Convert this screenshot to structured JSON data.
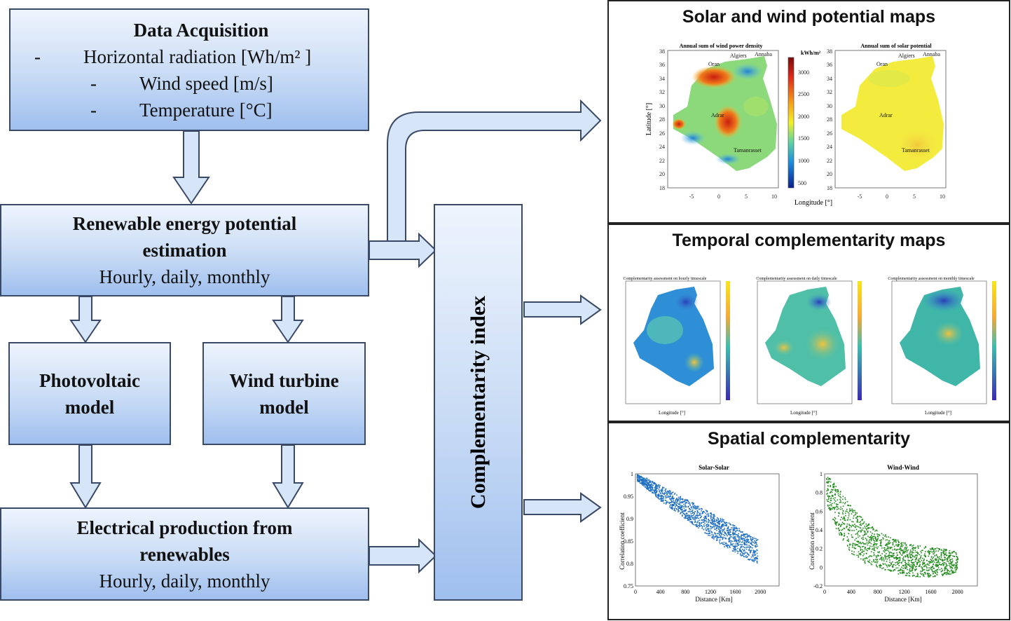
{
  "colors": {
    "box_top": "#eef4fd",
    "box_bottom": "#9fbfee",
    "arrow_fill": "#d6e5f8",
    "stroke": "#3a4a66"
  },
  "data_acquisition": {
    "title": "Data Acquisition",
    "items": [
      "Horizontal radiation [Wh/m² ]",
      "Wind speed [m/s]",
      "Temperature [°C]"
    ]
  },
  "potential": {
    "title1": "Renewable energy potential",
    "title2": "estimation",
    "sub": "Hourly, daily, monthly"
  },
  "pv": {
    "line1": "Photovoltaic",
    "line2": "model"
  },
  "wt": {
    "line1": "Wind turbine",
    "line2": "model"
  },
  "production": {
    "title1": "Electrical production from",
    "title2": "renewables",
    "sub": "Hourly, daily, monthly"
  },
  "complementarity": {
    "label": "Complementarity index"
  },
  "panels": {
    "maps": {
      "title": "Solar and wind potential maps",
      "wind_title": "Annual sum of wind power density",
      "solar_title": "Annual sum of solar potential",
      "unit": "kWh/m²",
      "colorbar_ticks": [
        "3000",
        "2500",
        "2000",
        "1500",
        "1000",
        "500"
      ],
      "y_ticks": [
        "38",
        "36",
        "34",
        "32",
        "30",
        "28",
        "26",
        "24",
        "22",
        "20",
        "18"
      ],
      "x_ticks": [
        "-5",
        "0",
        "5",
        "10"
      ],
      "ylabel": "Latitude [°]",
      "xlabel": "Longitude [°]",
      "cities": [
        "Oran",
        "Algiers",
        "Annaba",
        "Adrar",
        "Tamanrasset"
      ]
    },
    "temporal": {
      "title": "Temporal complementarity maps",
      "sub_titles": [
        "Complementarity assessment on hourly timescale",
        "Complementarity assessment on daily timescale",
        "Complementarity assessment on monthly timescale"
      ],
      "xlabel": "Longitude [°]"
    },
    "spatial": {
      "title": "Spatial complementarity",
      "ylabel": "Correlation coefficient",
      "xlabel": "Distance [Km]"
    }
  },
  "chart_data": [
    {
      "type": "scatter",
      "title": "Solar-Solar",
      "xlabel": "Distance [Km]",
      "ylabel": "Correlation coefficient",
      "xlim": [
        0,
        2300
      ],
      "ylim": [
        0.75,
        1.0
      ],
      "x_ticks": [
        0,
        400,
        800,
        1200,
        1600,
        2000
      ],
      "y_ticks": [
        0.75,
        0.8,
        0.85,
        0.9,
        0.95,
        1
      ],
      "color": "#1f6fc2",
      "series": [
        {
          "x": [
            20,
            200,
            400,
            600,
            800,
            1000,
            1200,
            1400,
            1600,
            1800,
            1950
          ],
          "y_high": [
            1.0,
            0.99,
            0.975,
            0.96,
            0.945,
            0.93,
            0.915,
            0.9,
            0.885,
            0.865,
            0.855
          ],
          "y_low": [
            0.985,
            0.965,
            0.94,
            0.92,
            0.9,
            0.88,
            0.86,
            0.84,
            0.825,
            0.81,
            0.8
          ]
        }
      ]
    },
    {
      "type": "scatter",
      "title": "Wind-Wind",
      "xlabel": "Distance [Km]",
      "ylabel": "Correlation coefficient",
      "xlim": [
        0,
        2300
      ],
      "ylim": [
        -0.2,
        1.0
      ],
      "x_ticks": [
        0,
        400,
        800,
        1200,
        1600,
        2000
      ],
      "y_ticks": [
        -0.2,
        0,
        0.2,
        0.4,
        0.6,
        0.8,
        1
      ],
      "color": "#1f8a1a",
      "series": [
        {
          "x": [
            20,
            200,
            400,
            600,
            800,
            1000,
            1200,
            1400,
            1600,
            1800,
            2000
          ],
          "y_high": [
            1.0,
            0.85,
            0.65,
            0.5,
            0.4,
            0.32,
            0.27,
            0.24,
            0.22,
            0.2,
            0.17
          ],
          "y_low": [
            0.7,
            0.35,
            0.15,
            0.05,
            0.0,
            -0.05,
            -0.08,
            -0.1,
            -0.1,
            -0.08,
            -0.05
          ]
        }
      ]
    }
  ]
}
